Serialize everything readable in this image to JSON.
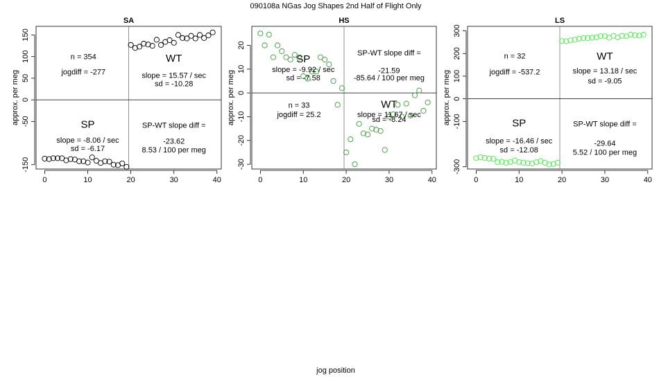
{
  "figure": {
    "title": "090108a   NGas Jog Shapes 2nd Half of Flight Only",
    "xlabel": "jog position"
  },
  "chart_data": [
    {
      "type": "scatter",
      "panel": "SA",
      "title": "SA",
      "ylabel": "approx. per meg",
      "xlim": [
        -2,
        41
      ],
      "ylim": [
        -160,
        170
      ],
      "xticks": [
        0,
        10,
        20,
        30,
        40
      ],
      "yticks": [
        -150,
        -50,
        0,
        50,
        100,
        150
      ],
      "marker_color": "#000000",
      "divider_x": 19.5,
      "divider_y": 0,
      "sp": {
        "x": [
          0,
          1,
          2,
          3,
          4,
          5,
          6,
          7,
          8,
          9,
          10,
          11,
          12,
          13,
          14,
          15,
          16,
          17,
          18,
          19
        ],
        "y": [
          -136,
          -137,
          -135,
          -135,
          -135,
          -140,
          -137,
          -138,
          -142,
          -142,
          -145,
          -133,
          -141,
          -146,
          -142,
          -143,
          -150,
          -151,
          -147,
          -155
        ]
      },
      "wt": {
        "x": [
          20,
          21,
          22,
          23,
          24,
          25,
          26,
          27,
          28,
          29,
          30,
          31,
          32,
          33,
          34,
          35,
          36,
          37,
          38,
          39
        ],
        "y": [
          127,
          120,
          123,
          130,
          128,
          125,
          139,
          127,
          134,
          138,
          132,
          150,
          143,
          142,
          148,
          142,
          150,
          143,
          149,
          156
        ]
      },
      "annotations": {
        "n": "n = 354",
        "jogdiff": "jogdiff = -277",
        "wt_label": "WT",
        "wt_slope": "slope = 15.57 / sec",
        "wt_sd": "sd = -10.28",
        "sp_label": "SP",
        "sp_slope": "slope = -8.06 / sec",
        "sp_sd": "sd = -6.17",
        "diff_title": "SP-WT slope diff =",
        "diff_value": "-23.62",
        "diff_rel": "8.53 / 100 per meg"
      }
    },
    {
      "type": "scatter",
      "panel": "HS",
      "title": "HS",
      "ylabel": "approx. per meg",
      "xlim": [
        -2,
        41
      ],
      "ylim": [
        -32,
        28
      ],
      "xticks": [
        0,
        10,
        20,
        30,
        40
      ],
      "yticks": [
        -30,
        -20,
        -10,
        0,
        10,
        20
      ],
      "marker_color": "#3a9a3a",
      "divider_x": 19.5,
      "divider_y": 0,
      "sp": {
        "x": [
          0,
          1,
          2,
          3,
          4,
          5,
          6,
          7,
          8,
          9,
          10,
          11,
          12,
          13,
          14,
          15,
          16,
          17,
          18,
          19
        ],
        "y": [
          25,
          20,
          24.5,
          15,
          20,
          17.5,
          15,
          14,
          16,
          15,
          7,
          6,
          9,
          9,
          15,
          14,
          12,
          5,
          -5,
          2
        ]
      },
      "wt": {
        "x": [
          20,
          21,
          22,
          23,
          24,
          25,
          26,
          27,
          28,
          29,
          30,
          31,
          32,
          33,
          34,
          35,
          36,
          37,
          38,
          39
        ],
        "y": [
          -25,
          -19.5,
          -30,
          -13,
          -17,
          -17.5,
          -15,
          -15.5,
          -16,
          -24,
          -10,
          -9,
          -5,
          -10,
          -4.5,
          -9.5,
          -1,
          1,
          -7.5,
          -4
        ]
      },
      "annotations": {
        "n": "n = 33",
        "jogdiff": "jogdiff = 25.2",
        "wt_label": "WT",
        "wt_slope": "slope = 11.67 / sec",
        "wt_sd": "sd = -8.24",
        "sp_label": "SP",
        "sp_slope": "slope = -9.92 / sec",
        "sp_sd": "sd = -7.58",
        "diff_title": "SP-WT slope diff =",
        "diff_value": "-21.59",
        "diff_rel": "-85.64 / 100 per meg"
      }
    },
    {
      "type": "scatter",
      "panel": "LS",
      "title": "LS",
      "ylabel": "approx. per meg",
      "xlim": [
        -2,
        41
      ],
      "ylim": [
        -310,
        320
      ],
      "xticks": [
        0,
        10,
        20,
        30,
        40
      ],
      "yticks": [
        -300,
        -100,
        0,
        100,
        200,
        300
      ],
      "marker_color": "#44ee44",
      "divider_x": 19.5,
      "divider_y": 0,
      "sp": {
        "x": [
          0,
          1,
          2,
          3,
          4,
          5,
          6,
          7,
          8,
          9,
          10,
          11,
          12,
          13,
          14,
          15,
          16,
          17,
          18,
          19
        ],
        "y": [
          -262,
          -258,
          -261,
          -264,
          -265,
          -280,
          -278,
          -283,
          -279,
          -272,
          -280,
          -282,
          -284,
          -286,
          -280,
          -275,
          -282,
          -290,
          -288,
          -282
        ]
      },
      "wt": {
        "x": [
          20,
          21,
          22,
          23,
          24,
          25,
          26,
          27,
          28,
          29,
          30,
          31,
          32,
          33,
          34,
          35,
          36,
          37,
          38,
          39
        ],
        "y": [
          255,
          254,
          258,
          261,
          265,
          268,
          268,
          270,
          271,
          277,
          276,
          270,
          278,
          271,
          278,
          276,
          283,
          281,
          279,
          283
        ]
      },
      "annotations": {
        "n": "n = 32",
        "jogdiff": "jogdiff = -537.2",
        "wt_label": "WT",
        "wt_slope": "slope = 13.18 / sec",
        "wt_sd": "sd = -9.05",
        "sp_label": "SP",
        "sp_slope": "slope = -16.46 / sec",
        "sp_sd": "sd = -12.08",
        "diff_title": "SP-WT slope diff =",
        "diff_value": "-29.64",
        "diff_rel": "5.52 / 100 per meg"
      }
    }
  ]
}
